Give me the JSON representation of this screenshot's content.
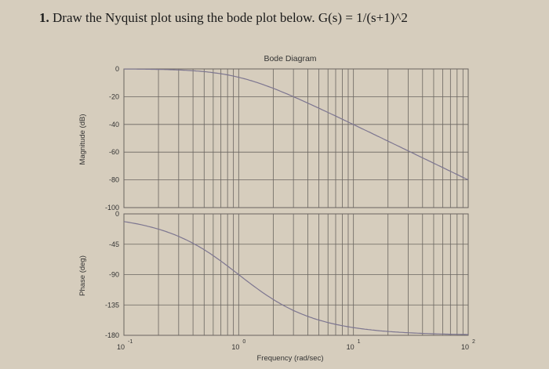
{
  "problem": {
    "number": "1.",
    "text": "Draw the Nyquist plot using the bode plot below. G(s) = 1/(s+1)^2"
  },
  "chart_data": [
    {
      "type": "line",
      "title": "Bode Diagram",
      "xlabel": "Frequency (rad/sec)",
      "ylabel": "Magnitude (dB)",
      "xscale": "log",
      "xlim": [
        0.1,
        100
      ],
      "ylim": [
        -100,
        0
      ],
      "yticks": [
        "0",
        "-20",
        "-40",
        "-60",
        "-80",
        "-100"
      ],
      "grid": true,
      "x": [
        0.1,
        0.2,
        0.5,
        1,
        2,
        5,
        10,
        20,
        50,
        100
      ],
      "values": [
        -0.09,
        -0.34,
        -1.94,
        -6.02,
        -13.98,
        -28.3,
        -40.09,
        -52.05,
        -67.96,
        -80.0
      ]
    },
    {
      "type": "line",
      "xlabel": "Frequency (rad/sec)",
      "ylabel": "Phase (deg)",
      "xscale": "log",
      "xlim": [
        0.1,
        100
      ],
      "ylim": [
        -180,
        0
      ],
      "yticks": [
        "0",
        "-45",
        "-90",
        "-135",
        "-180"
      ],
      "xticks": [
        {
          "base": "10",
          "exp": "-1"
        },
        {
          "base": "10",
          "exp": "0"
        },
        {
          "base": "10",
          "exp": "1"
        },
        {
          "base": "10",
          "exp": "2"
        }
      ],
      "grid": true,
      "x": [
        0.1,
        0.2,
        0.5,
        1,
        2,
        5,
        10,
        20,
        50,
        100
      ],
      "values": [
        -11.4,
        -22.6,
        -53.1,
        -90.0,
        -126.9,
        -157.4,
        -168.6,
        -174.3,
        -177.7,
        -178.9
      ]
    }
  ],
  "colors": {
    "paper": "#d6cdbd",
    "grid": "#6a6560",
    "curve": "#7d7690",
    "text": "#1a1a1a"
  }
}
